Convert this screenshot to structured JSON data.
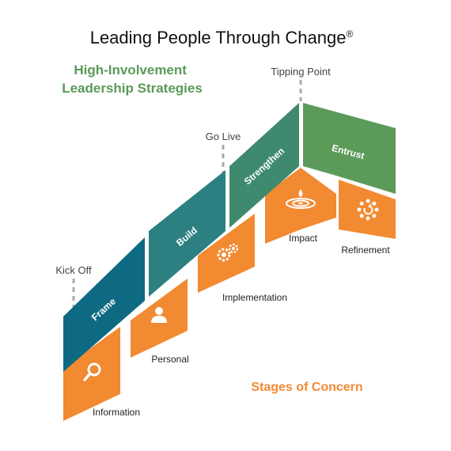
{
  "title": "Leading People Through Change",
  "title_mark": "®",
  "strategies_heading": [
    "High-Involvement",
    "Leadership Strategies"
  ],
  "stages_heading": "Stages of Concern",
  "milestones": [
    "Kick Off",
    "Go Live",
    "Tipping Point"
  ],
  "strategies": [
    "Frame",
    "Build",
    "Strengthen",
    "Entrust"
  ],
  "concerns": [
    {
      "label": "Information",
      "icon": "magnifier-icon"
    },
    {
      "label": "Personal",
      "icon": "person-icon"
    },
    {
      "label": "Implementation",
      "icon": "gears-icon"
    },
    {
      "label": "Impact",
      "icon": "ripple-icon"
    },
    {
      "label": "Refinement",
      "icon": "refresh-cycle-icon"
    }
  ],
  "colors": {
    "frame": "#0e6a82",
    "build": "#2c8082",
    "strengthen": "#3f8a6e",
    "entrust": "#5c9a5a",
    "orange": "#f28a32",
    "green_text": "#5a9a58",
    "orange_text": "#f28a32"
  }
}
